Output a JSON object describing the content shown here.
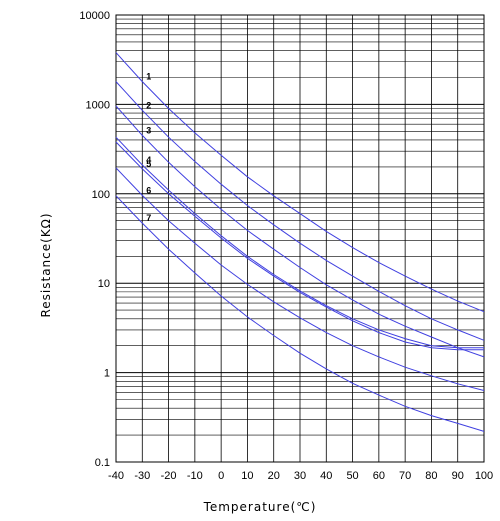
{
  "chart_data": {
    "type": "line",
    "xlabel": "Temperature(℃)",
    "ylabel": "Resistance(KΩ)",
    "xlim": [
      -40,
      100
    ],
    "ylim": [
      0.1,
      10000
    ],
    "yscale": "log",
    "grid": true,
    "x_ticks": [
      "-40",
      "-30",
      "-20",
      "-10",
      "0",
      "10",
      "20",
      "30",
      "40",
      "50",
      "60",
      "70",
      "80",
      "90",
      "100"
    ],
    "y_ticks": [
      "10000",
      "1000",
      "100",
      "10",
      "1",
      "0.1"
    ],
    "x": [
      -40,
      -30,
      -20,
      -10,
      0,
      10,
      20,
      30,
      40,
      50,
      60,
      70,
      80,
      90,
      100
    ],
    "series": [
      {
        "name": "1",
        "values": [
          3800,
          1800,
          900,
          480,
          270,
          155,
          95,
          60,
          38,
          25,
          17,
          12,
          8.6,
          6.3,
          4.8
        ]
      },
      {
        "name": "2",
        "values": [
          1800,
          860,
          430,
          230,
          128,
          74,
          45,
          28,
          18,
          12,
          8.1,
          5.6,
          4.0,
          3.0,
          2.3
        ]
      },
      {
        "name": "3",
        "values": [
          960,
          450,
          225,
          120,
          67,
          39,
          24,
          15,
          9.6,
          6.5,
          4.5,
          3.3,
          2.5,
          1.9,
          1.5
        ]
      },
      {
        "name": "4",
        "values": [
          430,
          210,
          110,
          60,
          34,
          20,
          12.5,
          8.2,
          5.6,
          4.0,
          3.0,
          2.4,
          2.0,
          1.9,
          1.9
        ]
      },
      {
        "name": "5",
        "values": [
          380,
          190,
          100,
          56,
          32,
          19,
          12,
          7.9,
          5.4,
          3.8,
          2.8,
          2.2,
          1.9,
          1.8,
          1.8
        ]
      },
      {
        "name": "6",
        "values": [
          195,
          96,
          50,
          28,
          16,
          9.7,
          6.2,
          4.1,
          2.8,
          2.0,
          1.5,
          1.15,
          0.92,
          0.75,
          0.63
        ]
      },
      {
        "name": "7",
        "values": [
          95,
          47,
          24,
          13,
          7.2,
          4.2,
          2.6,
          1.65,
          1.1,
          0.76,
          0.56,
          0.42,
          0.33,
          0.27,
          0.22
        ]
      }
    ],
    "colors": {
      "series": "#4040e0",
      "grid": "#000000",
      "text": "#000000"
    }
  }
}
